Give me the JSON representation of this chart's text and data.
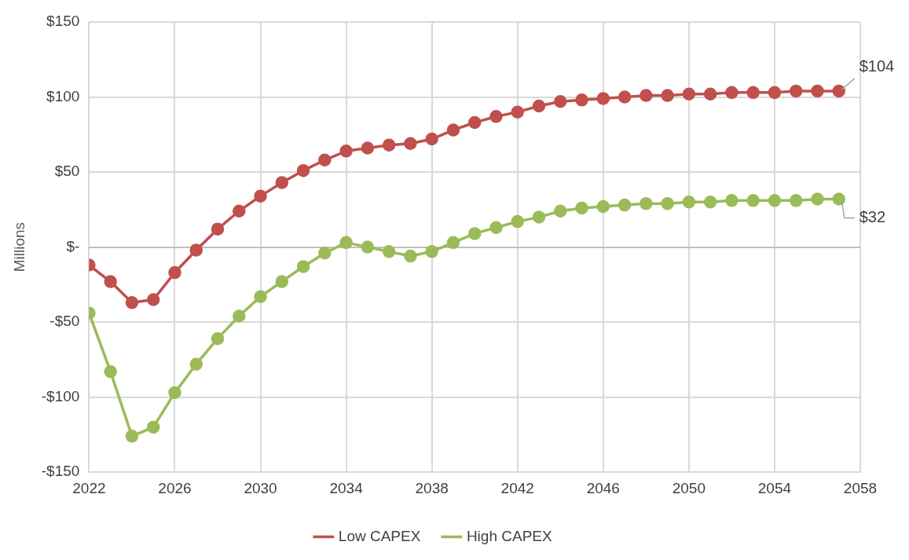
{
  "chart_data": {
    "type": "line",
    "ylabel": "Millions",
    "x": [
      2022,
      2023,
      2024,
      2025,
      2026,
      2027,
      2028,
      2029,
      2030,
      2031,
      2032,
      2033,
      2034,
      2035,
      2036,
      2037,
      2038,
      2039,
      2040,
      2041,
      2042,
      2043,
      2044,
      2045,
      2046,
      2047,
      2048,
      2049,
      2050,
      2051,
      2052,
      2053,
      2054,
      2055,
      2056,
      2057
    ],
    "series": [
      {
        "name": "Low CAPEX",
        "color": "#c0504d",
        "values": [
          -12,
          -23,
          -37,
          -35,
          -17,
          -2,
          12,
          24,
          34,
          43,
          51,
          58,
          64,
          66,
          68,
          69,
          72,
          78,
          83,
          87,
          90,
          94,
          97,
          98,
          99,
          100,
          101,
          101,
          102,
          102,
          103,
          103,
          103,
          104,
          104,
          104
        ],
        "value_labels": [
          null,
          null,
          null,
          null,
          null,
          null,
          null,
          null,
          null,
          null,
          null,
          null,
          null,
          null,
          null,
          null,
          null,
          null,
          null,
          null,
          null,
          null,
          null,
          null,
          null,
          null,
          null,
          null,
          null,
          null,
          null,
          null,
          null,
          null,
          null,
          "$104"
        ]
      },
      {
        "name": "High CAPEX",
        "color": "#9bbb59",
        "values": [
          -44,
          -83,
          -126,
          -120,
          -97,
          -78,
          -61,
          -46,
          -33,
          -23,
          -13,
          -4,
          3,
          0,
          -3,
          -6,
          -3,
          3,
          9,
          13,
          17,
          20,
          24,
          26,
          27,
          28,
          29,
          29,
          30,
          30,
          31,
          31,
          31,
          31,
          32,
          32
        ],
        "value_labels": [
          null,
          null,
          null,
          null,
          null,
          null,
          null,
          null,
          null,
          null,
          null,
          null,
          null,
          null,
          null,
          null,
          null,
          null,
          null,
          null,
          null,
          null,
          null,
          null,
          null,
          null,
          null,
          null,
          null,
          null,
          null,
          null,
          null,
          null,
          null,
          "$32"
        ]
      }
    ],
    "xlim": [
      2022,
      2058
    ],
    "xticks": [
      2022,
      2026,
      2030,
      2034,
      2038,
      2042,
      2046,
      2050,
      2054,
      2058
    ],
    "ylim": [
      -150,
      150
    ],
    "yticks": [
      {
        "value": -150,
        "label": "-$150"
      },
      {
        "value": -100,
        "label": "-$100"
      },
      {
        "value": -50,
        "label": "-$50"
      },
      {
        "value": 0,
        "label": "$-"
      },
      {
        "value": 50,
        "label": "$50"
      },
      {
        "value": 100,
        "label": "$100"
      },
      {
        "value": 150,
        "label": "$150"
      }
    ],
    "grid": true,
    "legend": "bottom",
    "marker": "circle",
    "line_style": "solid"
  }
}
